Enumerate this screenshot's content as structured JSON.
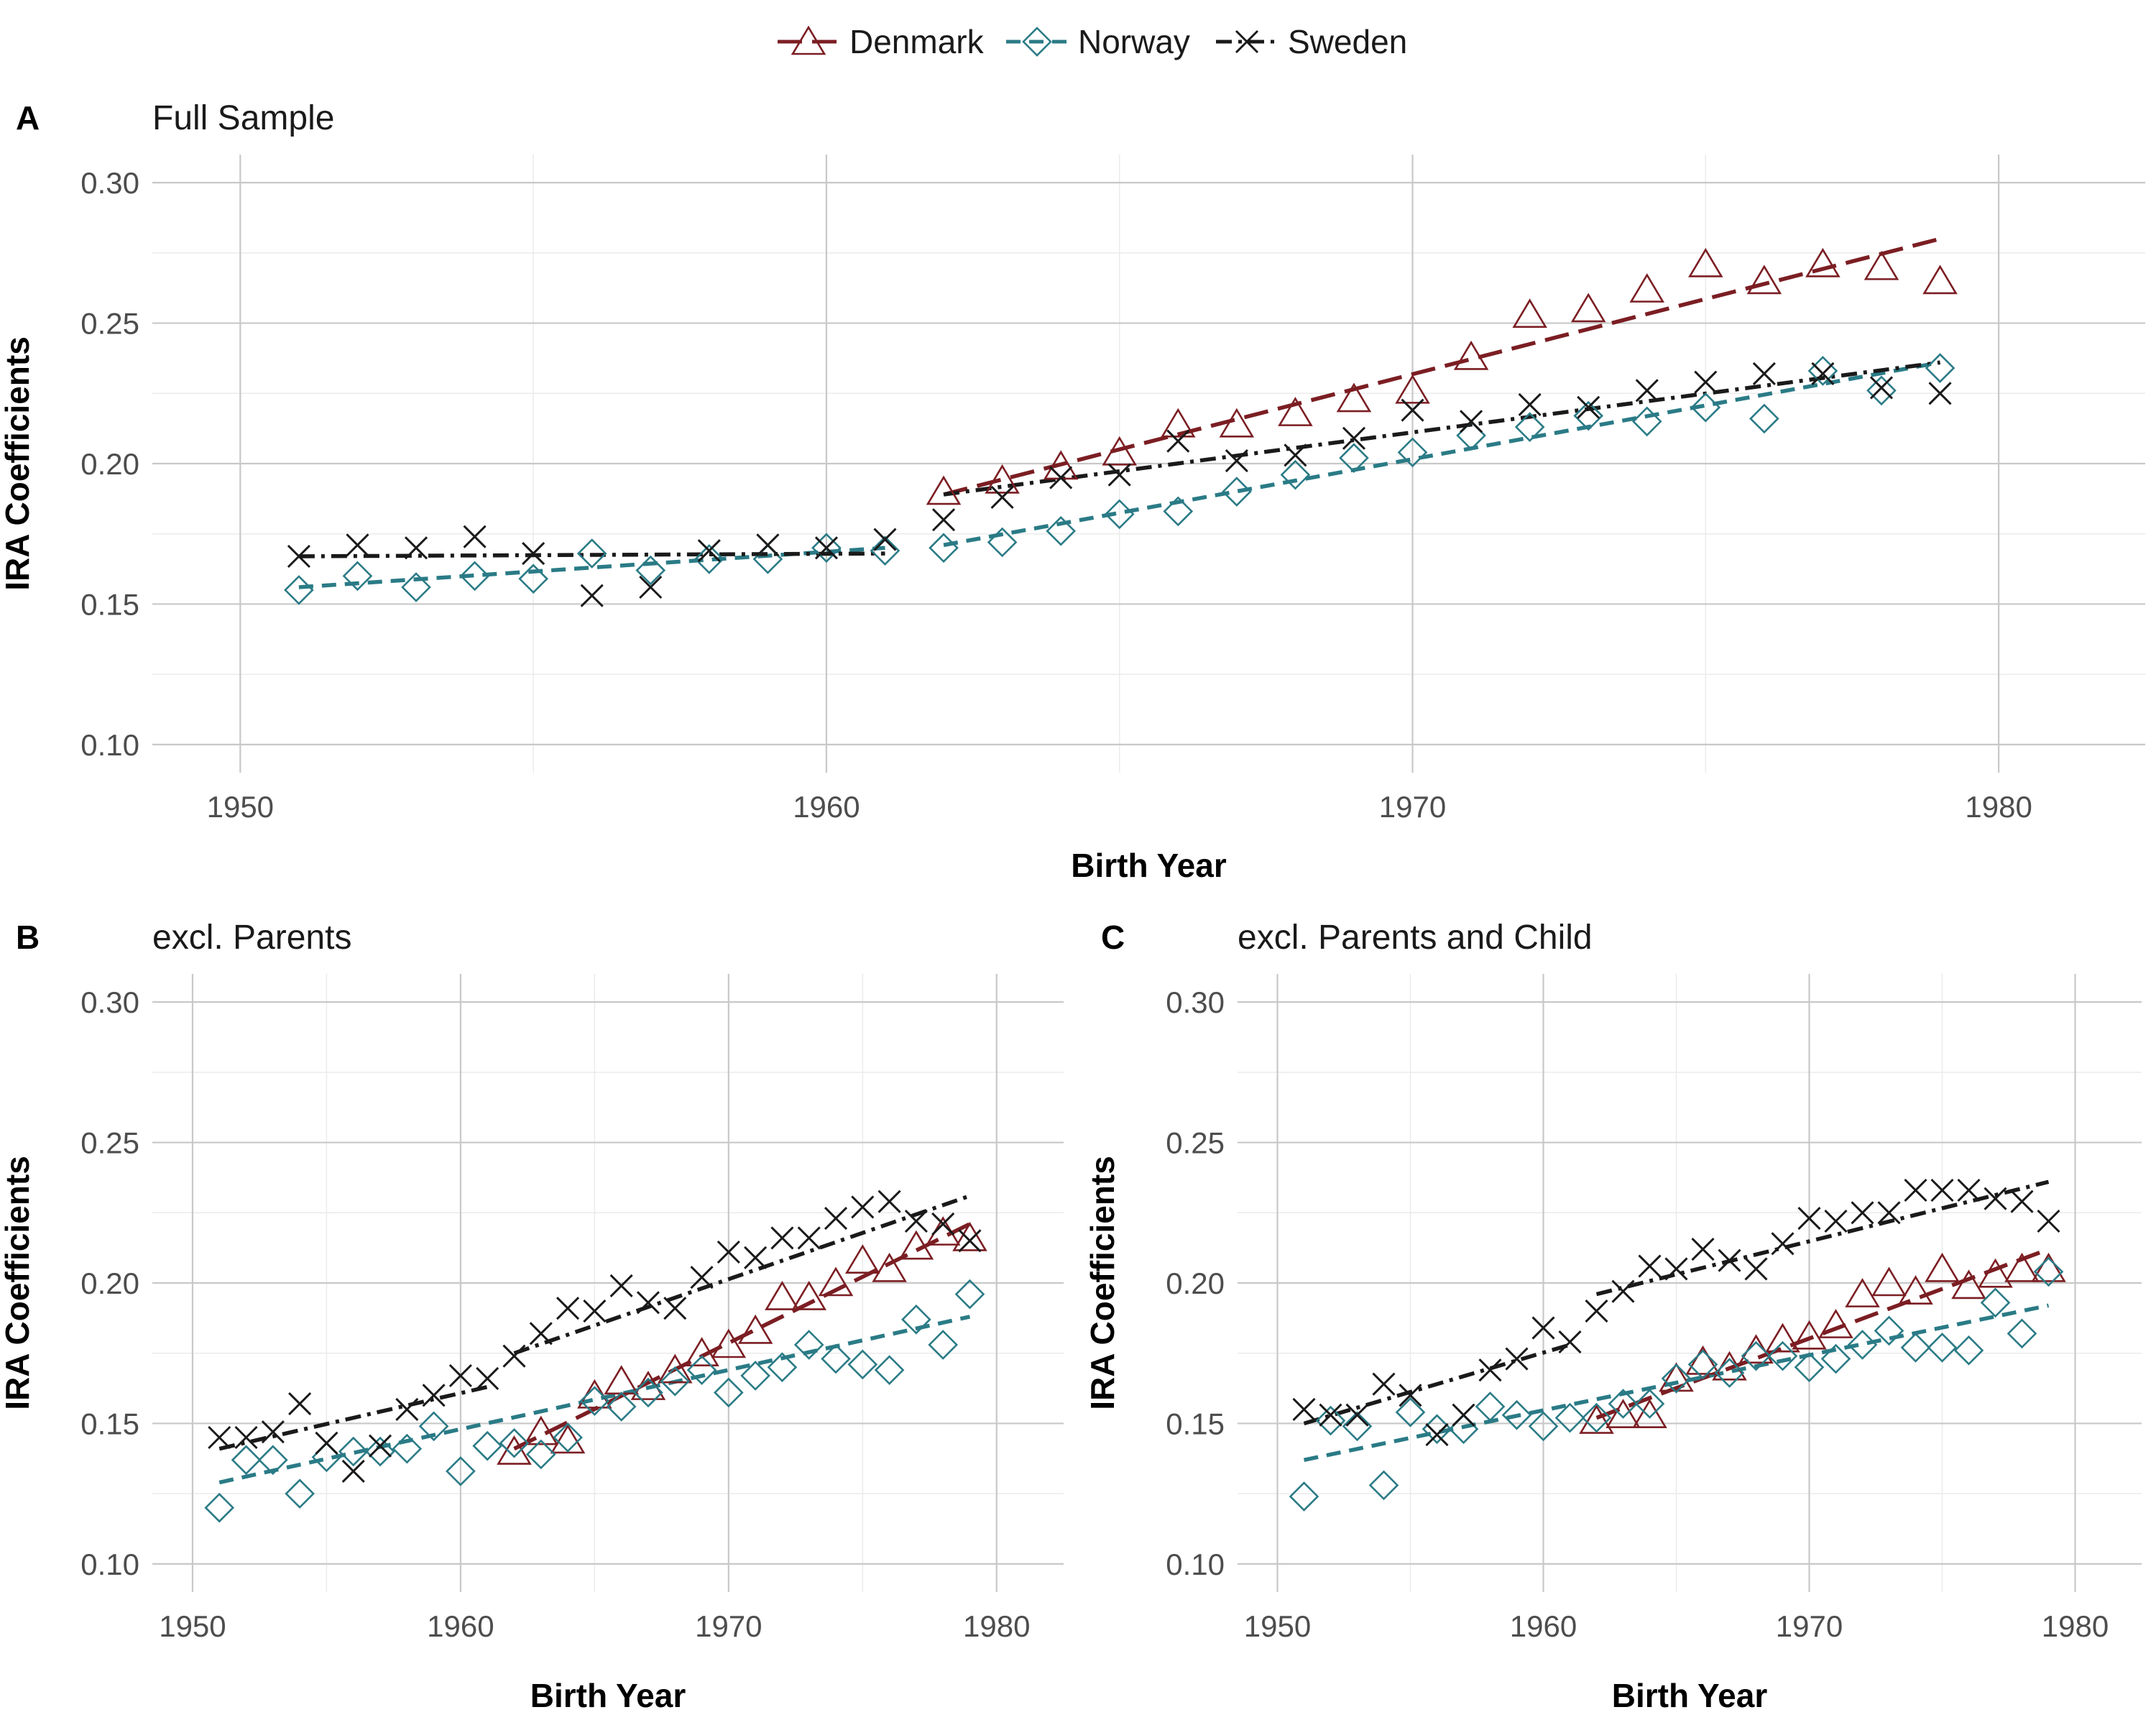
{
  "chart_data": {
    "type": "scatter",
    "legend": {
      "position": "top",
      "entries": [
        {
          "label": "Denmark",
          "color": "#7B1E23",
          "marker": "triangle",
          "line": "longdash"
        },
        {
          "label": "Norway",
          "color": "#2A7B86",
          "marker": "diamond",
          "line": "dashed"
        },
        {
          "label": "Sweden",
          "color": "#1A1A1A",
          "marker": "cross",
          "line": "dotdash"
        }
      ]
    },
    "panels": [
      {
        "letter": "A",
        "title": "Full Sample",
        "xlabel": "Birth Year",
        "ylabel": "IRA Coefficients",
        "xlim": [
          1948.5,
          1982.5
        ],
        "ylim": [
          0.09,
          0.31
        ],
        "xticks": [
          1950,
          1960,
          1970,
          1980
        ],
        "yticks": [
          "0.10",
          "0.15",
          "0.20",
          "0.25",
          "0.30"
        ],
        "series": [
          {
            "name": "Denmark",
            "x": [
              1962,
              1963,
              1964,
              1965,
              1966,
              1967,
              1968,
              1969,
              1970,
              1971,
              1972,
              1973,
              1974,
              1975,
              1976,
              1977,
              1978,
              1979
            ],
            "y": [
              0.19,
              0.194,
              0.199,
              0.204,
              0.214,
              0.214,
              0.218,
              0.223,
              0.226,
              0.238,
              0.253,
              0.255,
              0.262,
              0.271,
              0.265,
              0.271,
              0.27,
              0.265
            ],
            "fit": [
              [
                1962,
                0.189,
                1979,
                0.28
              ]
            ]
          },
          {
            "name": "Norway",
            "x": [
              1951,
              1952,
              1953,
              1954,
              1955,
              1956,
              1957,
              1958,
              1959,
              1960,
              1961,
              1962,
              1963,
              1964,
              1965,
              1966,
              1967,
              1968,
              1969,
              1970,
              1971,
              1972,
              1973,
              1974,
              1975,
              1976,
              1977,
              1978,
              1979
            ],
            "y": [
              0.155,
              0.16,
              0.156,
              0.16,
              0.159,
              0.168,
              0.162,
              0.166,
              0.166,
              0.17,
              0.169,
              0.17,
              0.172,
              0.176,
              0.182,
              0.183,
              0.19,
              0.196,
              0.202,
              0.204,
              0.21,
              0.213,
              0.217,
              0.215,
              0.22,
              0.216,
              0.233,
              0.226,
              0.234
            ],
            "fit": [
              [
                1951,
                0.156,
                1961,
                0.17
              ],
              [
                1962,
                0.171,
                1979,
                0.236
              ]
            ]
          },
          {
            "name": "Sweden",
            "x": [
              1951,
              1952,
              1953,
              1954,
              1955,
              1956,
              1957,
              1958,
              1959,
              1960,
              1961,
              1962,
              1963,
              1964,
              1965,
              1966,
              1967,
              1968,
              1969,
              1970,
              1971,
              1972,
              1973,
              1974,
              1975,
              1976,
              1977,
              1978,
              1979
            ],
            "y": [
              0.167,
              0.171,
              0.17,
              0.174,
              0.168,
              0.153,
              0.156,
              0.169,
              0.171,
              0.17,
              0.173,
              0.18,
              0.188,
              0.195,
              0.196,
              0.208,
              0.201,
              0.203,
              0.209,
              0.219,
              0.215,
              0.221,
              0.22,
              0.226,
              0.229,
              0.232,
              0.232,
              0.227,
              0.225
            ],
            "fit": [
              [
                1951,
                0.167,
                1961,
                0.168
              ],
              [
                1962,
                0.189,
                1979,
                0.236
              ]
            ]
          }
        ]
      },
      {
        "letter": "B",
        "title": "excl. Parents",
        "xlabel": "Birth Year",
        "ylabel": "IRA Coefficients",
        "xlim": [
          1948.5,
          1982.5
        ],
        "ylim": [
          0.09,
          0.31
        ],
        "xticks": [
          1950,
          1960,
          1970,
          1980
        ],
        "yticks": [
          "0.10",
          "0.15",
          "0.20",
          "0.25",
          "0.30"
        ],
        "series": [
          {
            "name": "Denmark",
            "x": [
              1962,
              1963,
              1964,
              1965,
              1966,
              1967,
              1968,
              1969,
              1970,
              1971,
              1972,
              1973,
              1974,
              1975,
              1976,
              1977,
              1978,
              1979
            ],
            "y": [
              0.14,
              0.147,
              0.144,
              0.16,
              0.165,
              0.163,
              0.169,
              0.175,
              0.178,
              0.183,
              0.195,
              0.195,
              0.2,
              0.208,
              0.205,
              0.213,
              0.218,
              0.216
            ],
            "fit": [
              [
                1962,
                0.141,
                1979,
                0.221
              ]
            ]
          },
          {
            "name": "Norway",
            "x": [
              1951,
              1952,
              1953,
              1954,
              1955,
              1956,
              1957,
              1958,
              1959,
              1960,
              1961,
              1962,
              1963,
              1964,
              1965,
              1966,
              1967,
              1968,
              1969,
              1970,
              1971,
              1972,
              1973,
              1974,
              1975,
              1976,
              1977,
              1978,
              1979
            ],
            "y": [
              0.12,
              0.137,
              0.137,
              0.125,
              0.138,
              0.14,
              0.14,
              0.141,
              0.149,
              0.133,
              0.142,
              0.143,
              0.139,
              0.145,
              0.158,
              0.156,
              0.161,
              0.165,
              0.169,
              0.161,
              0.167,
              0.17,
              0.178,
              0.173,
              0.171,
              0.169,
              0.187,
              0.178,
              0.196
            ],
            "fit": [
              [
                1951,
                0.129,
                1979,
                0.188
              ]
            ]
          },
          {
            "name": "Sweden",
            "x": [
              1951,
              1952,
              1953,
              1954,
              1955,
              1956,
              1957,
              1958,
              1959,
              1960,
              1961,
              1962,
              1963,
              1964,
              1965,
              1966,
              1967,
              1968,
              1969,
              1970,
              1971,
              1972,
              1973,
              1974,
              1975,
              1976,
              1977,
              1978,
              1979
            ],
            "y": [
              0.145,
              0.145,
              0.147,
              0.157,
              0.143,
              0.133,
              0.142,
              0.155,
              0.16,
              0.167,
              0.166,
              0.174,
              0.182,
              0.191,
              0.19,
              0.199,
              0.193,
              0.191,
              0.202,
              0.211,
              0.209,
              0.216,
              0.216,
              0.223,
              0.227,
              0.229,
              0.222,
              0.221,
              0.215
            ],
            "fit": [
              [
                1951,
                0.141,
                1961,
                0.163
              ],
              [
                1962,
                0.175,
                1979,
                0.231
              ]
            ]
          }
        ]
      },
      {
        "letter": "C",
        "title": "excl. Parents and Child",
        "xlabel": "Birth Year",
        "ylabel": "IRA Coefficients",
        "xlim": [
          1948.5,
          1982.5
        ],
        "ylim": [
          0.09,
          0.31
        ],
        "xticks": [
          1950,
          1960,
          1970,
          1980
        ],
        "yticks": [
          "0.10",
          "0.15",
          "0.20",
          "0.25",
          "0.30"
        ],
        "series": [
          {
            "name": "Denmark",
            "x": [
              1962,
              1963,
              1964,
              1965,
              1966,
              1967,
              1968,
              1969,
              1970,
              1971,
              1972,
              1973,
              1974,
              1975,
              1976,
              1977,
              1978,
              1979
            ],
            "y": [
              0.151,
              0.153,
              0.153,
              0.166,
              0.172,
              0.17,
              0.176,
              0.18,
              0.181,
              0.185,
              0.196,
              0.2,
              0.197,
              0.205,
              0.199,
              0.203,
              0.205,
              0.205
            ],
            "fit": [
              [
                1962,
                0.152,
                1979,
                0.212
              ]
            ]
          },
          {
            "name": "Norway",
            "x": [
              1951,
              1952,
              1953,
              1954,
              1955,
              1956,
              1957,
              1958,
              1959,
              1960,
              1961,
              1962,
              1963,
              1964,
              1965,
              1966,
              1967,
              1968,
              1969,
              1970,
              1971,
              1972,
              1973,
              1974,
              1975,
              1976,
              1977,
              1978,
              1979
            ],
            "y": [
              0.124,
              0.151,
              0.149,
              0.128,
              0.154,
              0.148,
              0.148,
              0.156,
              0.153,
              0.149,
              0.152,
              0.152,
              0.157,
              0.157,
              0.166,
              0.171,
              0.168,
              0.174,
              0.174,
              0.17,
              0.173,
              0.178,
              0.183,
              0.177,
              0.177,
              0.176,
              0.193,
              0.182,
              0.204
            ],
            "fit": [
              [
                1951,
                0.137,
                1979,
                0.192
              ]
            ]
          },
          {
            "name": "Sweden",
            "x": [
              1951,
              1952,
              1953,
              1954,
              1955,
              1956,
              1957,
              1958,
              1959,
              1960,
              1961,
              1962,
              1963,
              1964,
              1965,
              1966,
              1967,
              1968,
              1969,
              1970,
              1971,
              1972,
              1973,
              1974,
              1975,
              1976,
              1977,
              1978,
              1979
            ],
            "y": [
              0.155,
              0.153,
              0.153,
              0.164,
              0.16,
              0.146,
              0.153,
              0.169,
              0.173,
              0.184,
              0.179,
              0.19,
              0.197,
              0.206,
              0.205,
              0.212,
              0.208,
              0.205,
              0.214,
              0.223,
              0.222,
              0.225,
              0.225,
              0.233,
              0.233,
              0.233,
              0.23,
              0.229,
              0.222
            ],
            "fit": [
              [
                1951,
                0.15,
                1961,
                0.178
              ],
              [
                1962,
                0.196,
                1979,
                0.236
              ]
            ]
          }
        ]
      }
    ]
  }
}
